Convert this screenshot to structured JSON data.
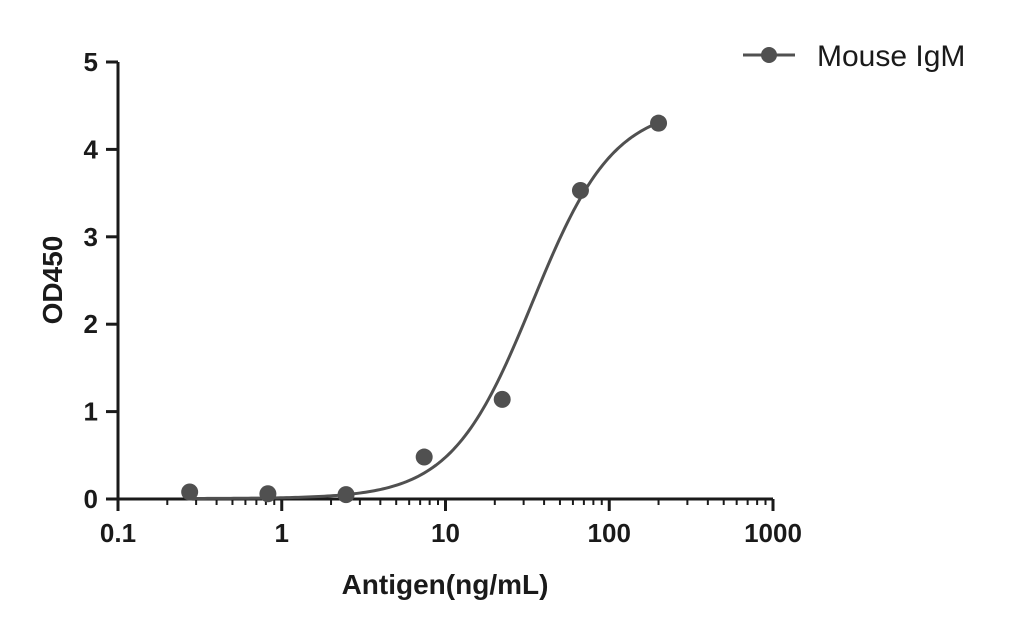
{
  "chart_data": {
    "type": "scatter",
    "title": "",
    "xlabel": "Antigen(ng/mL)",
    "ylabel": "OD450",
    "x_scale": "log",
    "xlim": [
      0.1,
      1000
    ],
    "ylim": [
      0,
      5
    ],
    "x_ticks": [
      0.1,
      1,
      10,
      100,
      1000
    ],
    "x_tick_labels": [
      "0.1",
      "1",
      "10",
      "100",
      "1000"
    ],
    "y_ticks": [
      0,
      1,
      2,
      3,
      4,
      5
    ],
    "y_tick_labels": [
      "0",
      "1",
      "2",
      "3",
      "4",
      "5"
    ],
    "grid": false,
    "legend_position": "top-right",
    "colors": {
      "series": "#505050",
      "axis": "#1a1a1a"
    },
    "series": [
      {
        "name": "Mouse IgM",
        "x": [
          0.274,
          0.823,
          2.47,
          7.41,
          22.2,
          66.7,
          200
        ],
        "y": [
          0.08,
          0.06,
          0.05,
          0.48,
          1.14,
          3.53,
          4.3
        ],
        "fit": "4PL sigmoid"
      }
    ]
  }
}
